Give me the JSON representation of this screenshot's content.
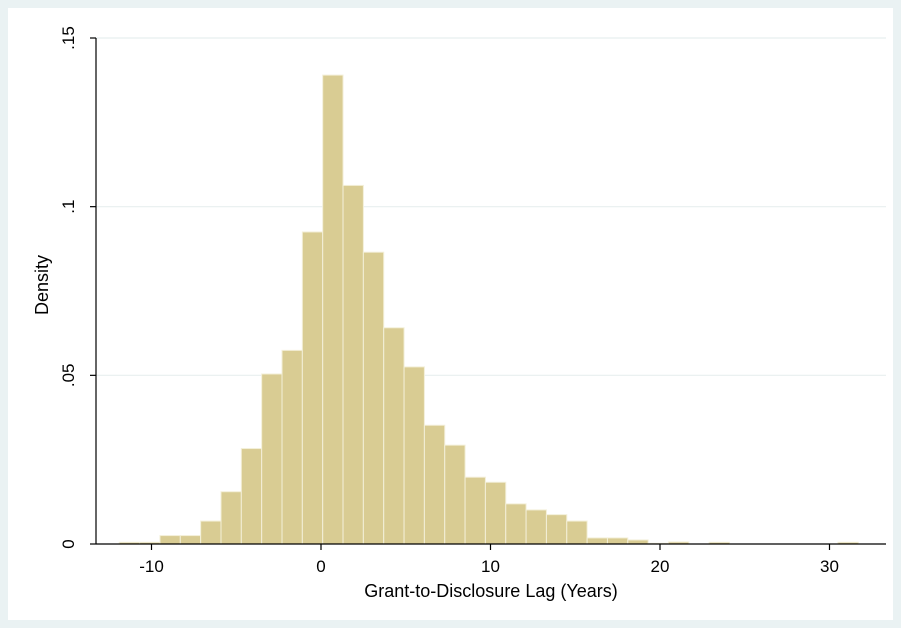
{
  "chart_data": {
    "type": "bar",
    "xlabel": "Grant-to-Disclosure Lag (Years)",
    "ylabel": "Density",
    "xlim": [
      -13,
      33
    ],
    "ylim": [
      0,
      0.15
    ],
    "x_ticks": [
      {
        "value": -10,
        "label": "-10"
      },
      {
        "value": 0,
        "label": "0"
      },
      {
        "value": 10,
        "label": "10"
      },
      {
        "value": 20,
        "label": "20"
      },
      {
        "value": 30,
        "label": "30"
      }
    ],
    "y_ticks": [
      {
        "value": 0,
        "label": "0"
      },
      {
        "value": 0.05,
        "label": ".05"
      },
      {
        "value": 0.1,
        "label": ".1"
      },
      {
        "value": 0.15,
        "label": ".15"
      }
    ],
    "grid": true,
    "bar_color": "#d9cc93",
    "bar_edge_color": "#f3efd8",
    "bins": [
      {
        "x0": -11.9,
        "x1": -10.7,
        "y": 0.0005
      },
      {
        "x0": -10.7,
        "x1": -9.5,
        "y": 0.0005
      },
      {
        "x0": -9.5,
        "x1": -8.3,
        "y": 0.0025
      },
      {
        "x0": -8.3,
        "x1": -7.1,
        "y": 0.0025
      },
      {
        "x0": -7.1,
        "x1": -5.9,
        "y": 0.0068
      },
      {
        "x0": -5.9,
        "x1": -4.7,
        "y": 0.0155
      },
      {
        "x0": -4.7,
        "x1": -3.5,
        "y": 0.0283
      },
      {
        "x0": -3.5,
        "x1": -2.3,
        "y": 0.0504
      },
      {
        "x0": -2.3,
        "x1": -1.1,
        "y": 0.0574
      },
      {
        "x0": -1.1,
        "x1": 0.1,
        "y": 0.0925
      },
      {
        "x0": 0.1,
        "x1": 1.3,
        "y": 0.139
      },
      {
        "x0": 1.3,
        "x1": 2.5,
        "y": 0.1063
      },
      {
        "x0": 2.5,
        "x1": 3.7,
        "y": 0.0865
      },
      {
        "x0": 3.7,
        "x1": 4.9,
        "y": 0.0641
      },
      {
        "x0": 4.9,
        "x1": 6.1,
        "y": 0.0525
      },
      {
        "x0": 6.1,
        "x1": 7.3,
        "y": 0.0352
      },
      {
        "x0": 7.3,
        "x1": 8.5,
        "y": 0.0293
      },
      {
        "x0": 8.5,
        "x1": 9.7,
        "y": 0.0198
      },
      {
        "x0": 9.7,
        "x1": 10.9,
        "y": 0.0183
      },
      {
        "x0": 10.9,
        "x1": 12.1,
        "y": 0.0119
      },
      {
        "x0": 12.1,
        "x1": 13.3,
        "y": 0.0101
      },
      {
        "x0": 13.3,
        "x1": 14.5,
        "y": 0.0087
      },
      {
        "x0": 14.5,
        "x1": 15.7,
        "y": 0.0068
      },
      {
        "x0": 15.7,
        "x1": 16.9,
        "y": 0.0018
      },
      {
        "x0": 16.9,
        "x1": 18.1,
        "y": 0.0018
      },
      {
        "x0": 18.1,
        "x1": 19.3,
        "y": 0.0012
      },
      {
        "x0": 19.3,
        "x1": 20.5,
        "y": 0.0002
      },
      {
        "x0": 20.5,
        "x1": 21.7,
        "y": 0.0006
      },
      {
        "x0": 22.9,
        "x1": 24.1,
        "y": 0.0005
      },
      {
        "x0": 30.5,
        "x1": 31.7,
        "y": 0.0005
      }
    ]
  }
}
